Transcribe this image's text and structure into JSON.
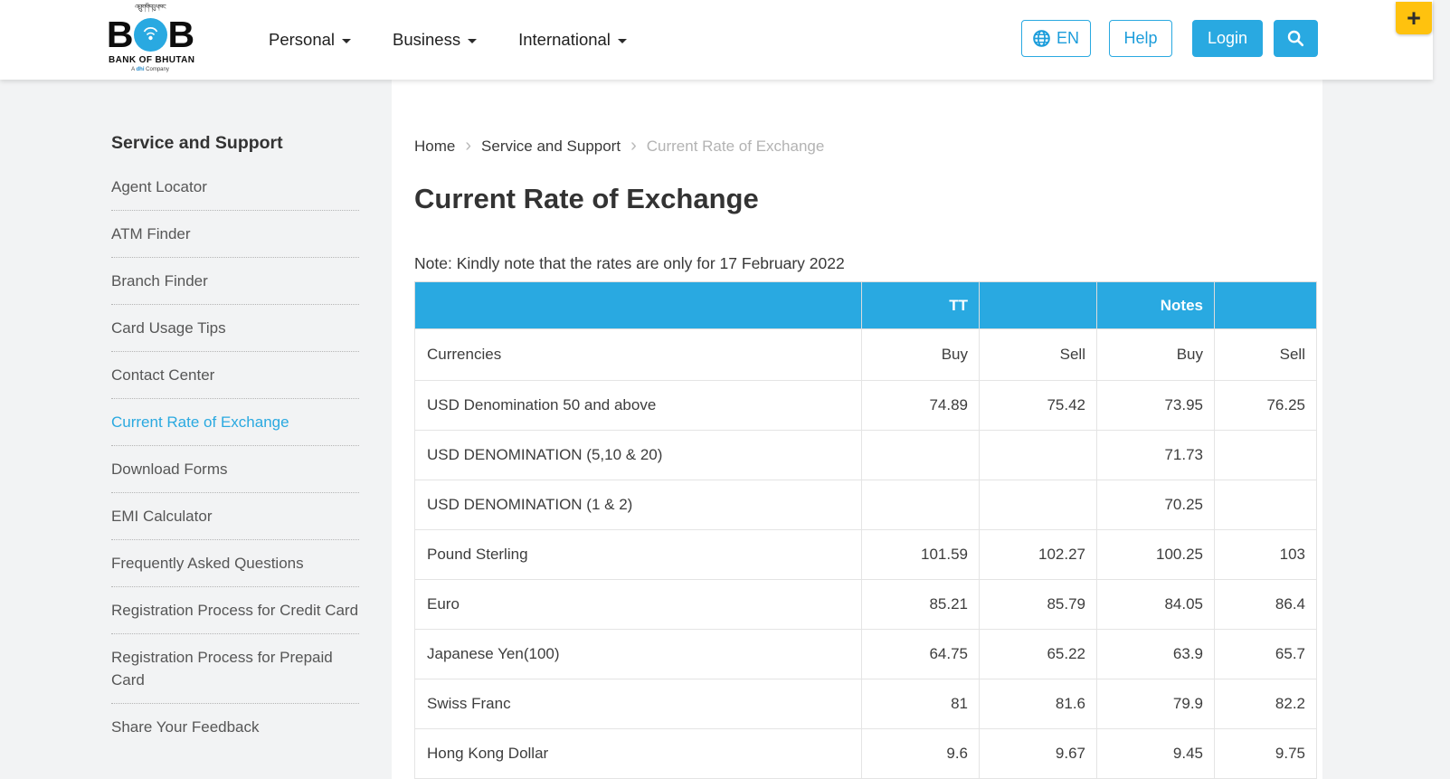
{
  "brand": {
    "dzongkha_script": "འབྲུག་གི་དངུལ་ཁང་",
    "logo_letter_left": "B",
    "logo_letter_right": "B",
    "bank_name": "BANK OF BHUTAN",
    "tagline_prefix": "A ",
    "tagline_mid": "dhi",
    "tagline_suffix": " Company"
  },
  "navbar": {
    "menu": [
      "Personal",
      "Business",
      "International"
    ],
    "language_label": "EN",
    "help_label": "Help",
    "login_label": "Login"
  },
  "accessibility_button_label": "+",
  "sidebar": {
    "title": "Service and Support",
    "items": [
      {
        "label": "Agent Locator",
        "active": false
      },
      {
        "label": "ATM Finder",
        "active": false
      },
      {
        "label": "Branch Finder",
        "active": false
      },
      {
        "label": "Card Usage Tips",
        "active": false
      },
      {
        "label": "Contact Center",
        "active": false
      },
      {
        "label": "Current Rate of Exchange",
        "active": true
      },
      {
        "label": "Download Forms",
        "active": false
      },
      {
        "label": "EMI Calculator",
        "active": false
      },
      {
        "label": "Frequently Asked Questions",
        "active": false
      },
      {
        "label": "Registration Process for Credit Card",
        "active": false
      },
      {
        "label": "Registration Process for Prepaid Card",
        "active": false
      },
      {
        "label": "Share Your Feedback",
        "active": false
      }
    ]
  },
  "breadcrumb": {
    "items": [
      "Home",
      "Service and Support",
      "Current Rate of Exchange"
    ]
  },
  "page": {
    "title": "Current Rate of Exchange",
    "note": "Note: Kindly note that the rates are only for 17 February 2022"
  },
  "table": {
    "group_headers": [
      "",
      "TT",
      "",
      "Notes",
      ""
    ],
    "column_headers": [
      "Currencies",
      "Buy",
      "Sell",
      "Buy",
      "Sell"
    ],
    "rows": [
      [
        "USD Denomination 50 and above",
        "74.89",
        "75.42",
        "73.95",
        "76.25"
      ],
      [
        "USD DENOMINATION (5,10 & 20)",
        "",
        "",
        "71.73",
        ""
      ],
      [
        "USD DENOMINATION (1 & 2)",
        "",
        "",
        "70.25",
        ""
      ],
      [
        "Pound Sterling",
        "101.59",
        "102.27",
        "100.25",
        "103"
      ],
      [
        "Euro",
        "85.21",
        "85.79",
        "84.05",
        "86.4"
      ],
      [
        "Japanese Yen(100)",
        "64.75",
        "65.22",
        "63.9",
        "65.7"
      ],
      [
        "Swiss Franc",
        "81",
        "81.6",
        "79.9",
        "82.2"
      ],
      [
        "Hong Kong Dollar",
        "9.6",
        "9.67",
        "9.45",
        "9.75"
      ]
    ]
  },
  "colors": {
    "brand_blue": "#29a9e1",
    "accent_yellow": "#ffc20e",
    "active_link_blue": "#2aa9e0"
  }
}
